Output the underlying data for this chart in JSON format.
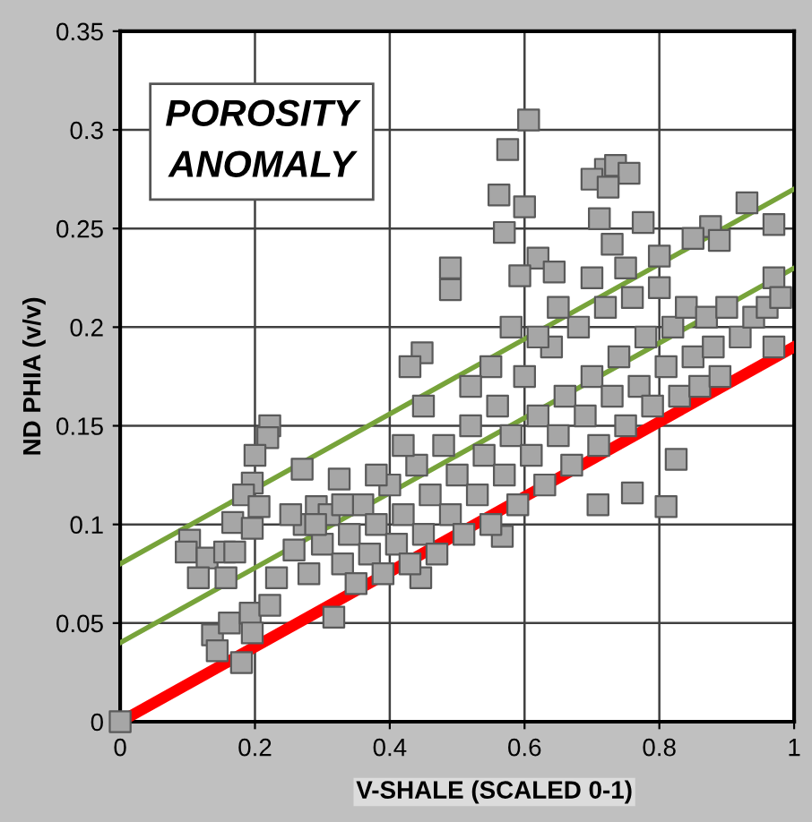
{
  "chart_data": {
    "type": "scatter",
    "xlabel": "V-SHALE (SCALED 0-1)",
    "ylabel": "ND PHIA (v/v)",
    "annotations": [
      "POROSITY ANOMALY"
    ],
    "xlim": [
      0,
      1
    ],
    "xticks": [
      0,
      0.2,
      0.4,
      0.6,
      0.8,
      1
    ],
    "ylim": [
      0,
      0.35
    ],
    "yticks": [
      0,
      0.05,
      0.1,
      0.15,
      0.2,
      0.25,
      0.3,
      0.35
    ],
    "grid": true,
    "series": [
      {
        "marker": "square",
        "color": "#a6a6a6",
        "x": [
          0,
          0.606,
          0.575,
          0.562,
          0.6,
          0.57,
          0.72,
          0.7,
          0.735,
          0.755,
          0.724,
          0.711,
          0.776,
          0.73,
          0.93,
          0.97,
          0.876,
          0.85,
          0.889,
          0.49,
          0.49,
          0.448,
          0.43,
          0.62,
          0.644,
          0.593,
          0.8,
          0.97,
          0.222,
          0.219,
          0.2,
          0.196,
          0.27,
          0.325,
          0.183,
          0.206,
          0.167,
          0.196,
          0.103,
          0.098,
          0.129,
          0.116,
          0.155,
          0.157,
          0.17,
          0.137,
          0.144,
          0.162,
          0.18,
          0.193,
          0.196,
          0.222,
          0.232,
          0.258,
          0.273,
          0.253,
          0.291,
          0.317,
          0.81,
          0.709,
          0.76,
          0.825,
          0.446,
          0.567,
          0.28,
          0.3,
          0.31,
          0.33,
          0.34,
          0.35,
          0.36,
          0.37,
          0.38,
          0.39,
          0.4,
          0.41,
          0.42,
          0.43,
          0.44,
          0.45,
          0.46,
          0.47,
          0.48,
          0.49,
          0.5,
          0.51,
          0.52,
          0.53,
          0.54,
          0.55,
          0.56,
          0.57,
          0.58,
          0.59,
          0.6,
          0.61,
          0.62,
          0.63,
          0.64,
          0.65,
          0.66,
          0.67,
          0.68,
          0.69,
          0.7,
          0.71,
          0.72,
          0.73,
          0.74,
          0.75,
          0.76,
          0.77,
          0.78,
          0.79,
          0.8,
          0.81,
          0.82,
          0.83,
          0.84,
          0.85,
          0.86,
          0.87,
          0.88,
          0.89,
          0.9,
          0.92,
          0.94,
          0.96,
          0.98,
          0.97,
          0.45,
          0.55,
          0.65,
          0.7,
          0.75,
          0.62,
          0.58,
          0.52,
          0.42,
          0.38,
          0.33,
          0.29
        ],
        "values": [
          0,
          0.305,
          0.29,
          0.267,
          0.261,
          0.248,
          0.28,
          0.275,
          0.282,
          0.278,
          0.271,
          0.255,
          0.253,
          0.242,
          0.263,
          0.252,
          0.251,
          0.245,
          0.244,
          0.23,
          0.219,
          0.187,
          0.18,
          0.235,
          0.228,
          0.226,
          0.236,
          0.225,
          0.15,
          0.144,
          0.135,
          0.121,
          0.128,
          0.123,
          0.115,
          0.109,
          0.101,
          0.098,
          0.092,
          0.086,
          0.083,
          0.073,
          0.086,
          0.073,
          0.086,
          0.044,
          0.036,
          0.05,
          0.03,
          0.055,
          0.045,
          0.059,
          0.073,
          0.087,
          0.1,
          0.105,
          0.109,
          0.053,
          0.109,
          0.11,
          0.116,
          0.133,
          0.073,
          0.094,
          0.075,
          0.09,
          0.105,
          0.08,
          0.095,
          0.07,
          0.11,
          0.085,
          0.1,
          0.075,
          0.12,
          0.09,
          0.105,
          0.08,
          0.13,
          0.095,
          0.115,
          0.085,
          0.14,
          0.105,
          0.125,
          0.095,
          0.15,
          0.115,
          0.135,
          0.1,
          0.16,
          0.125,
          0.145,
          0.11,
          0.175,
          0.135,
          0.155,
          0.12,
          0.19,
          0.145,
          0.165,
          0.13,
          0.2,
          0.155,
          0.175,
          0.14,
          0.21,
          0.165,
          0.185,
          0.15,
          0.215,
          0.17,
          0.195,
          0.16,
          0.22,
          0.18,
          0.2,
          0.165,
          0.21,
          0.185,
          0.17,
          0.205,
          0.19,
          0.175,
          0.21,
          0.195,
          0.205,
          0.21,
          0.215,
          0.19,
          0.16,
          0.18,
          0.21,
          0.225,
          0.23,
          0.195,
          0.2,
          0.17,
          0.14,
          0.125,
          0.11,
          0.1
        ]
      },
      {
        "type": "line",
        "color": "#77a33a",
        "x": [
          0,
          1
        ],
        "values": [
          0.08,
          0.27
        ]
      },
      {
        "type": "line",
        "color": "#77a33a",
        "x": [
          0,
          1
        ],
        "values": [
          0.04,
          0.23
        ]
      },
      {
        "type": "line",
        "color": "#ff0000",
        "x": [
          0,
          1
        ],
        "values": [
          0,
          0.19
        ]
      }
    ]
  }
}
